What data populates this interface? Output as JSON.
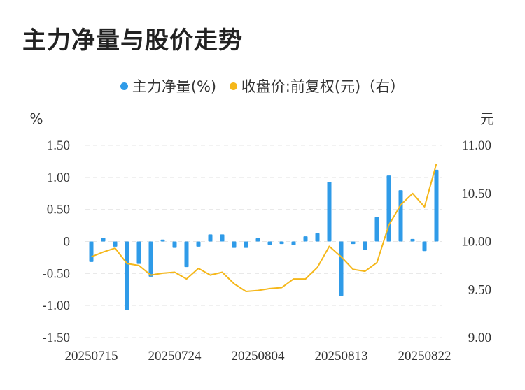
{
  "chart_data": {
    "title": "主力净量与股价走势",
    "type": "bar+line",
    "legend": [
      {
        "name": "主力净量(%)",
        "color": "#2f9be8"
      },
      {
        "name": "收盘价:前复权(元)（右）",
        "color": "#f5b71a"
      }
    ],
    "y_left_unit": "%",
    "y_right_unit": "元",
    "y_left_ticks": [
      "1.50",
      "1.00",
      "0.50",
      "0",
      "-0.50",
      "-1.00",
      "-1.50"
    ],
    "y_right_ticks": [
      "11.00",
      "10.50",
      "10.00",
      "9.50",
      "9.00"
    ],
    "ylim_left": [
      -1.5,
      1.5
    ],
    "ylim_right": [
      9.0,
      11.0
    ],
    "x_tick_labels": [
      "20250715",
      "20250724",
      "20250804",
      "20250813",
      "20250822"
    ],
    "x_tick_indices": [
      0,
      7,
      14,
      21,
      28
    ],
    "grid": true,
    "series": [
      {
        "name": "主力净量(%)",
        "type": "bar",
        "axis": "left",
        "color": "#2f9be8",
        "values": [
          -0.32,
          0.06,
          -0.08,
          -1.07,
          -0.35,
          -0.55,
          0.03,
          -0.1,
          -0.4,
          -0.08,
          0.11,
          0.11,
          -0.1,
          -0.1,
          0.05,
          -0.05,
          -0.04,
          -0.06,
          0.08,
          0.13,
          0.93,
          -0.85,
          -0.04,
          -0.13,
          0.38,
          1.03,
          0.8,
          0.04,
          -0.15,
          1.12
        ]
      },
      {
        "name": "收盘价:前复权(元)（右）",
        "type": "line",
        "axis": "right",
        "color": "#f5b71a",
        "values": [
          9.84,
          9.89,
          9.93,
          9.77,
          9.75,
          9.65,
          9.67,
          9.68,
          9.61,
          9.72,
          9.65,
          9.68,
          9.56,
          9.48,
          9.49,
          9.51,
          9.52,
          9.61,
          9.61,
          9.73,
          9.95,
          9.84,
          9.71,
          9.69,
          9.78,
          10.17,
          10.38,
          10.5,
          10.36,
          10.81
        ]
      }
    ]
  }
}
